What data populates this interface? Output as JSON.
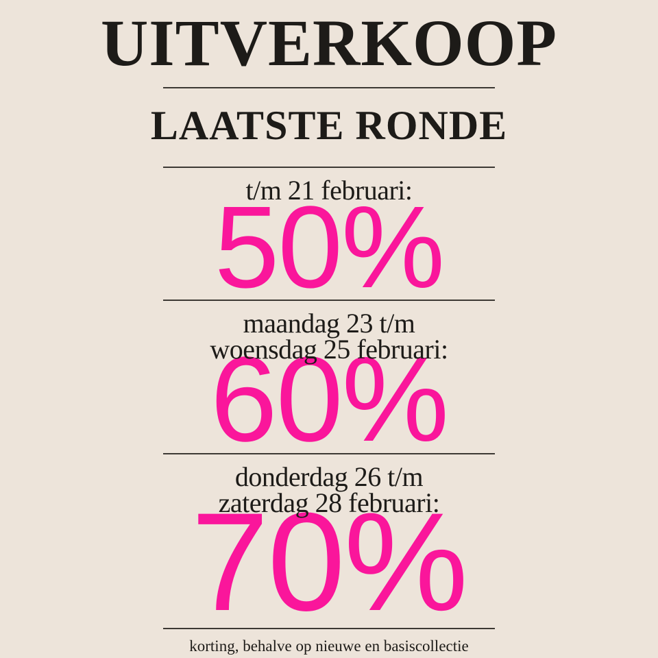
{
  "poster": {
    "title": "UITVERKOOP",
    "subtitle": "LAATSTE RONDE",
    "sections": [
      {
        "dates": [
          "t/m 21 februari:"
        ],
        "discount": "50%"
      },
      {
        "dates": [
          "maandag 23 t/m",
          "woensdag 25 februari:"
        ],
        "discount": "60%"
      },
      {
        "dates": [
          "donderdag 26 t/m",
          "zaterdag 28 februari:"
        ],
        "discount": "70%"
      }
    ],
    "footer": "korting, behalve op nieuwe en basiscollectie",
    "colors": {
      "background": "#EDE4DA",
      "text": "#1D1B18",
      "accent_pink": "#FA169B",
      "divider": "#3C3833"
    }
  }
}
